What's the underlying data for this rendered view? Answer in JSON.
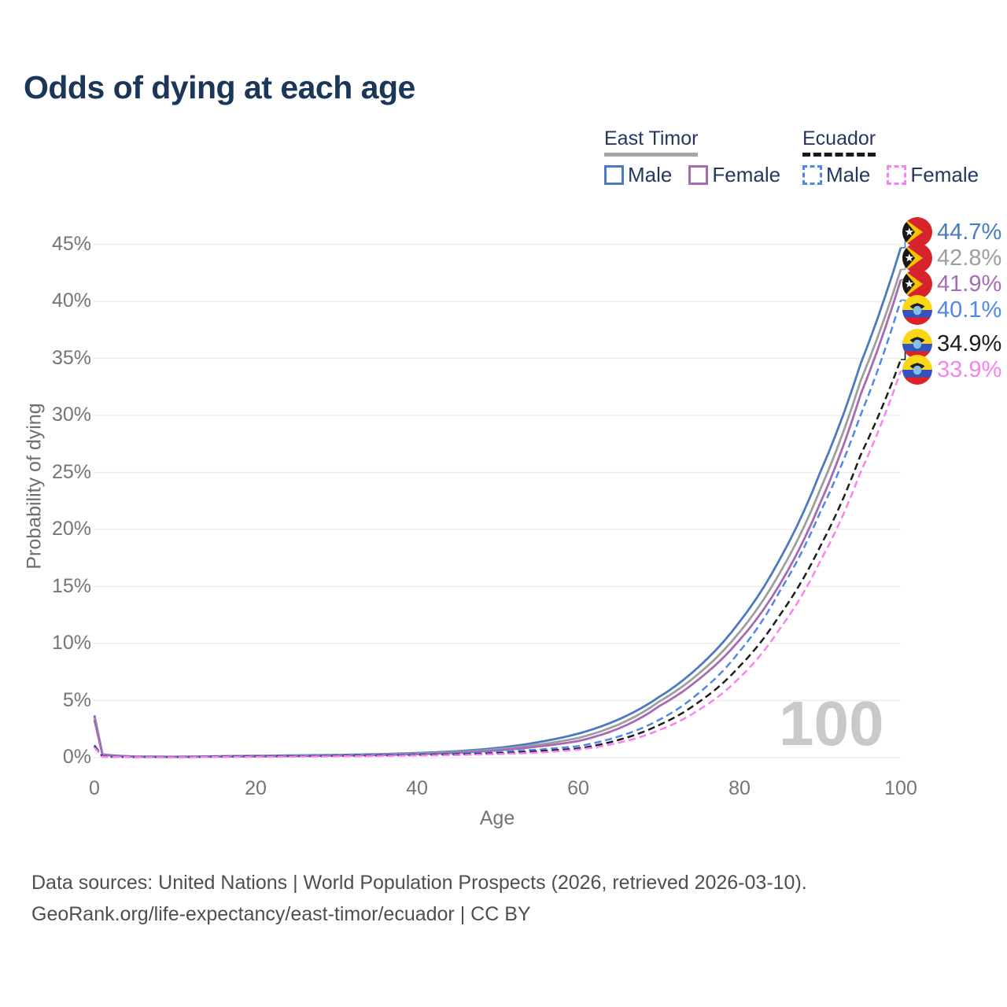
{
  "watermark": "100",
  "legend": {
    "groups": [
      {
        "id": "east-timor",
        "name": "East Timor",
        "line_style": "solid",
        "underline_color": "#a6a6a6",
        "items": [
          {
            "id": "male",
            "label": "Male",
            "color": "#4a7ac2"
          },
          {
            "id": "female",
            "label": "Female",
            "color": "#a76ab5"
          }
        ]
      },
      {
        "id": "ecuador",
        "name": "Ecuador",
        "line_style": "dashed",
        "underline_color": "#1a1a1a",
        "items": [
          {
            "id": "male",
            "label": "Male",
            "color": "#4f87ea"
          },
          {
            "id": "female",
            "label": "Female",
            "color": "#fb80f2"
          }
        ]
      }
    ]
  },
  "chart_data": {
    "type": "line",
    "title": "Odds of dying at each age",
    "xlabel": "Age",
    "ylabel": "Probability of dying",
    "xlim": [
      0,
      100
    ],
    "ylim": [
      0,
      45
    ],
    "grid": "horizontal",
    "x_ticks": [
      {
        "value": 0,
        "label": "0"
      },
      {
        "value": 20,
        "label": "20"
      },
      {
        "value": 40,
        "label": "40"
      },
      {
        "value": 60,
        "label": "60"
      },
      {
        "value": 80,
        "label": "80"
      },
      {
        "value": 100,
        "label": "100"
      }
    ],
    "y_ticks": [
      {
        "value": 0,
        "label": "0%"
      },
      {
        "value": 5,
        "label": "5%"
      },
      {
        "value": 10,
        "label": "10%"
      },
      {
        "value": 15,
        "label": "15%"
      },
      {
        "value": 20,
        "label": "20%"
      },
      {
        "value": 25,
        "label": "25%"
      },
      {
        "value": 30,
        "label": "30%"
      },
      {
        "value": 35,
        "label": "35%"
      },
      {
        "value": 40,
        "label": "40%"
      },
      {
        "value": 45,
        "label": "45%"
      }
    ],
    "ages": [
      0,
      1,
      5,
      10,
      15,
      20,
      25,
      30,
      35,
      40,
      45,
      50,
      55,
      60,
      65,
      70,
      75,
      80,
      85,
      90,
      95,
      100
    ],
    "series": [
      {
        "name": "East Timor Male",
        "country": "East Timor",
        "sex": "Male",
        "flag": "east-timor",
        "style": "solid",
        "color": "#4a7ac2",
        "end_value": 44.7,
        "end_label": "44.7%",
        "values": [
          3.7,
          0.28,
          0.1,
          0.08,
          0.12,
          0.16,
          0.2,
          0.24,
          0.3,
          0.4,
          0.56,
          0.85,
          1.35,
          2.1,
          3.35,
          5.3,
          8.0,
          11.9,
          17.4,
          25.0,
          34.5,
          44.7
        ]
      },
      {
        "name": "East Timor Both sexes",
        "country": "East Timor",
        "sex": "All",
        "flag": "east-timor",
        "style": "solid",
        "color": "#9e9e9e",
        "end_value": 42.8,
        "end_label": "42.8%",
        "values": [
          3.5,
          0.26,
          0.09,
          0.07,
          0.1,
          0.14,
          0.17,
          0.21,
          0.26,
          0.35,
          0.49,
          0.73,
          1.13,
          1.72,
          2.9,
          4.9,
          7.4,
          11.0,
          16.2,
          23.5,
          33.0,
          42.8
        ]
      },
      {
        "name": "East Timor Female",
        "country": "East Timor",
        "sex": "Female",
        "flag": "east-timor",
        "style": "solid",
        "color": "#a76ab5",
        "end_value": 41.9,
        "end_label": "41.9%",
        "values": [
          3.3,
          0.24,
          0.08,
          0.06,
          0.09,
          0.11,
          0.14,
          0.18,
          0.23,
          0.3,
          0.43,
          0.63,
          0.97,
          1.45,
          2.55,
          4.5,
          6.9,
          10.3,
          15.2,
          22.3,
          31.8,
          41.9
        ]
      },
      {
        "name": "Ecuador Male",
        "country": "Ecuador",
        "sex": "Male",
        "flag": "ecuador",
        "style": "dashed",
        "color": "#4f87ea",
        "end_value": 40.1,
        "end_label": "40.1%",
        "values": [
          1.1,
          0.09,
          0.05,
          0.05,
          0.09,
          0.13,
          0.16,
          0.19,
          0.23,
          0.28,
          0.36,
          0.5,
          0.7,
          1.0,
          1.85,
          3.3,
          5.7,
          9.3,
          14.6,
          21.5,
          30.0,
          40.1
        ]
      },
      {
        "name": "Ecuador Both sexes",
        "country": "Ecuador",
        "sex": "All",
        "flag": "ecuador",
        "style": "dashed",
        "color": "#1c1c1c",
        "end_value": 34.9,
        "end_label": "34.9%",
        "values": [
          1.0,
          0.08,
          0.04,
          0.04,
          0.07,
          0.1,
          0.12,
          0.14,
          0.17,
          0.22,
          0.28,
          0.38,
          0.55,
          0.8,
          1.55,
          2.85,
          4.9,
          8.0,
          12.5,
          18.5,
          26.5,
          34.9
        ]
      },
      {
        "name": "Ecuador Female",
        "country": "Ecuador",
        "sex": "Female",
        "flag": "ecuador",
        "style": "dashed",
        "color": "#fb80f2",
        "end_value": 33.9,
        "end_label": "33.9%",
        "values": [
          0.9,
          0.07,
          0.04,
          0.03,
          0.05,
          0.07,
          0.09,
          0.11,
          0.14,
          0.18,
          0.23,
          0.31,
          0.44,
          0.7,
          1.3,
          2.4,
          4.2,
          7.0,
          11.3,
          17.2,
          25.0,
          33.9
        ]
      }
    ]
  },
  "footer": {
    "line1": "Data sources: United Nations | World Population Prospects (2026, retrieved 2026-03-10).",
    "line2": "GeoRank.org/life-expectancy/east-timor/ecuador | CC BY"
  }
}
